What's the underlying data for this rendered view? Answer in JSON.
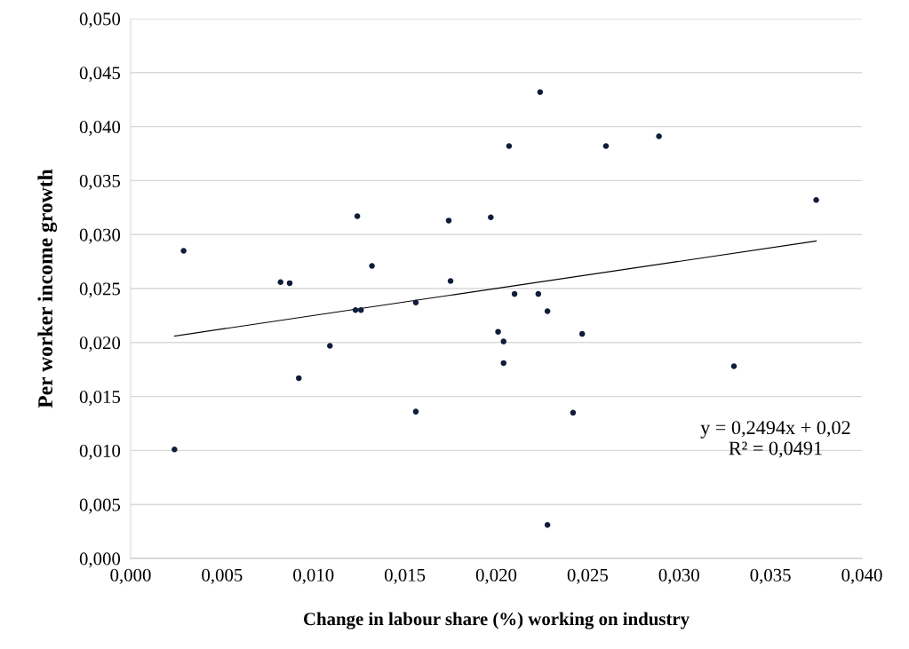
{
  "chart_data": {
    "type": "scatter",
    "xlabel": "Change in labour share (%) working on industry",
    "ylabel": "Per worker income growth",
    "x": [
      0.0024,
      0.0029,
      0.0082,
      0.0087,
      0.0092,
      0.0109,
      0.0123,
      0.0126,
      0.0124,
      0.0132,
      0.0156,
      0.0156,
      0.0174,
      0.0175,
      0.0197,
      0.0207,
      0.0201,
      0.0204,
      0.0204,
      0.021,
      0.0223,
      0.0224,
      0.0228,
      0.0228,
      0.0242,
      0.0247,
      0.026,
      0.0289,
      0.033,
      0.0375
    ],
    "series": [
      {
        "color": "#0f1d3a",
        "marker": "circle",
        "values": [
          0.0101,
          0.0285,
          0.0256,
          0.0255,
          0.0167,
          0.0197,
          0.023,
          0.023,
          0.0317,
          0.0271,
          0.0237,
          0.0136,
          0.0313,
          0.0257,
          0.0316,
          0.0382,
          0.021,
          0.0201,
          0.0181,
          0.0245,
          0.0245,
          0.0432,
          0.0229,
          0.0031,
          0.0135,
          0.0208,
          0.0382,
          0.0391,
          0.0178,
          0.0332
        ]
      },
      {
        "type": "line",
        "color": "#000000",
        "x": [
          0.0024,
          0.0375
        ],
        "values": [
          0.0206,
          0.0294
        ]
      }
    ],
    "annotations": [
      "y = 0,2494x + 0,02\nR² = 0,0491"
    ],
    "xlim": [
      0,
      0.04
    ],
    "ylim": [
      0,
      0.05
    ],
    "xticks": [
      {
        "value": 0,
        "label": "0,000"
      },
      {
        "value": 0.005,
        "label": "0,005"
      },
      {
        "value": 0.01,
        "label": "0,010"
      },
      {
        "value": 0.015,
        "label": "0,015"
      },
      {
        "value": 0.02,
        "label": "0,020"
      },
      {
        "value": 0.025,
        "label": "0,025"
      },
      {
        "value": 0.03,
        "label": "0,030"
      },
      {
        "value": 0.035,
        "label": "0,035"
      },
      {
        "value": 0.04,
        "label": "0,040"
      }
    ],
    "yticks": [
      {
        "value": 0,
        "label": "0,000"
      },
      {
        "value": 0.005,
        "label": "0,005"
      },
      {
        "value": 0.01,
        "label": "0,010"
      },
      {
        "value": 0.015,
        "label": "0,015"
      },
      {
        "value": 0.02,
        "label": "0,020"
      },
      {
        "value": 0.025,
        "label": "0,025"
      },
      {
        "value": 0.03,
        "label": "0,030"
      },
      {
        "value": 0.035,
        "label": "0,035"
      },
      {
        "value": 0.04,
        "label": "0,040"
      },
      {
        "value": 0.045,
        "label": "0,045"
      },
      {
        "value": 0.05,
        "label": "0,050"
      }
    ],
    "grid": "y"
  }
}
